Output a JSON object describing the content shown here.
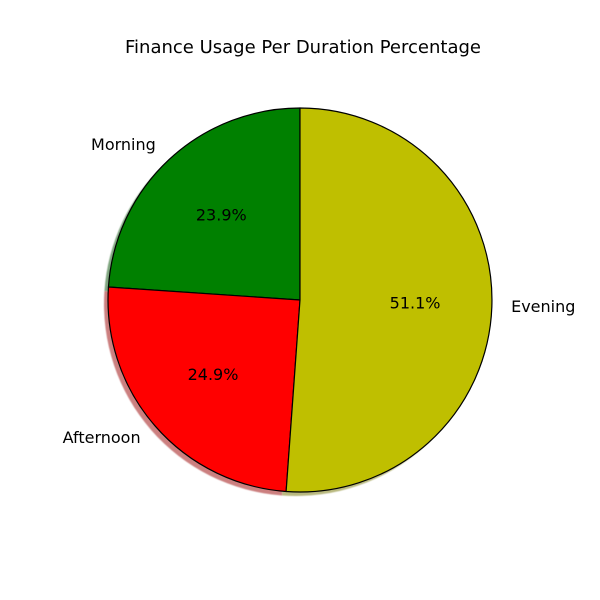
{
  "chart_data": {
    "type": "pie",
    "title": "Finance Usage Per Duration Percentage",
    "categories": [
      "Morning",
      "Afternoon",
      "Evening"
    ],
    "values": [
      23.9,
      24.9,
      51.1
    ],
    "value_labels": [
      "23.9%",
      "24.9%",
      "51.1%"
    ],
    "colors": [
      "#008000",
      "#ff0000",
      "#bfbf00"
    ],
    "start_angle_deg": 90,
    "direction": "counterclockwise",
    "shadow": true,
    "edge_color": "#000000"
  }
}
